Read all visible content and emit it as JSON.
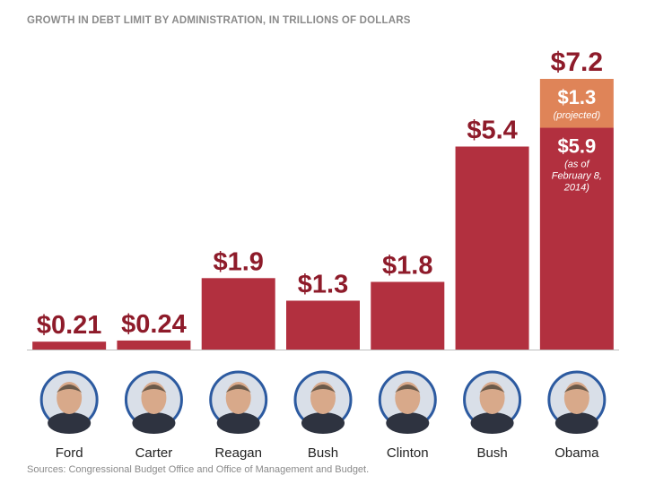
{
  "chart_data": {
    "type": "bar",
    "title": "GROWTH IN DEBT LIMIT BY ADMINISTRATION, IN TRILLIONS OF DOLLARS",
    "xlabel": "",
    "ylabel": "",
    "ylim": [
      0,
      7.2
    ],
    "categories": [
      "Ford",
      "Carter",
      "Reagan",
      "Bush",
      "Clinton",
      "Bush",
      "Obama"
    ],
    "values": [
      0.21,
      0.24,
      1.9,
      1.3,
      1.8,
      5.4,
      7.2
    ],
    "value_labels": [
      "$0.21",
      "$0.24",
      "$1.9",
      "$1.3",
      "$1.8",
      "$5.4",
      "$7.2"
    ],
    "stack": {
      "category_index": 6,
      "segments": [
        {
          "value": 5.9,
          "label": "$5.9",
          "note": [
            "(as of",
            "February 8,",
            "2014)"
          ],
          "color": "#b2303f"
        },
        {
          "value": 1.3,
          "label": "$1.3",
          "note": [
            "(projected)"
          ],
          "color": "#df8458"
        }
      ]
    },
    "colors": {
      "bar": "#b2303f",
      "projected": "#df8458",
      "value_text": "#8e1b2a",
      "portrait_ring": "#2c5aa0"
    },
    "portraits": [
      "ford-portrait",
      "carter-portrait",
      "reagan-portrait",
      "bush-portrait",
      "clinton-portrait",
      "bush-jr-portrait",
      "obama-portrait"
    ]
  },
  "source": "Sources: Congressional Budget Office and Office of Management and Budget."
}
